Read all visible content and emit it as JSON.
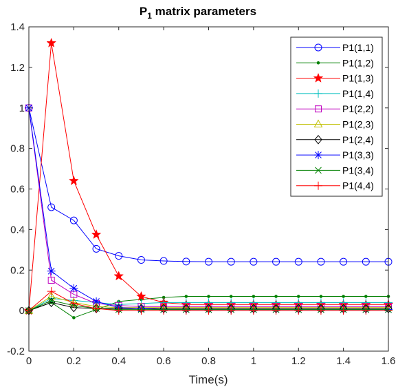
{
  "chart_data": {
    "type": "line",
    "title": {
      "main": "P",
      "subscript": "1",
      "rest": " matrix parameters"
    },
    "xlabel": "Time(s)",
    "ylabel": "",
    "xlim": [
      0,
      1.6
    ],
    "ylim": [
      -0.2,
      1.4
    ],
    "xticks": [
      "0",
      "0.2",
      "0.4",
      "0.6",
      "0.8",
      "1",
      "1.2",
      "1.4",
      "1.6"
    ],
    "yticks": [
      "-0.2",
      "0",
      "0.2",
      "0.4",
      "0.6",
      "0.8",
      "1",
      "1.2",
      "1.4"
    ],
    "grid": false,
    "legend_position": "top-right",
    "x": [
      0,
      0.1,
      0.2,
      0.3,
      0.4,
      0.5,
      0.6,
      0.7,
      0.8,
      0.9,
      1.0,
      1.1,
      1.2,
      1.3,
      1.4,
      1.5,
      1.6
    ],
    "series": [
      {
        "name": "P1(1,1)",
        "color": "#0000ff",
        "marker": "circle",
        "values": [
          1.0,
          0.51,
          0.445,
          0.305,
          0.27,
          0.25,
          0.245,
          0.242,
          0.241,
          0.241,
          0.241,
          0.241,
          0.241,
          0.241,
          0.241,
          0.241,
          0.241
        ]
      },
      {
        "name": "P1(1,2)",
        "color": "#008000",
        "marker": "dot",
        "values": [
          0.0,
          0.04,
          -0.035,
          0.005,
          0.045,
          0.055,
          0.065,
          0.07,
          0.07,
          0.07,
          0.07,
          0.07,
          0.07,
          0.07,
          0.07,
          0.07,
          0.07
        ]
      },
      {
        "name": "P1(1,3)",
        "color": "#ff0000",
        "marker": "star",
        "values": [
          0.0,
          1.32,
          0.64,
          0.375,
          0.17,
          0.07,
          0.04,
          0.03,
          0.03,
          0.03,
          0.03,
          0.03,
          0.03,
          0.03,
          0.03,
          0.03,
          0.03
        ]
      },
      {
        "name": "P1(1,4)",
        "color": "#00bfbf",
        "marker": "plus",
        "values": [
          0.0,
          0.06,
          0.05,
          0.04,
          0.03,
          0.035,
          0.04,
          0.04,
          0.04,
          0.04,
          0.04,
          0.04,
          0.04,
          0.04,
          0.04,
          0.04,
          0.04
        ]
      },
      {
        "name": "P1(2,2)",
        "color": "#bf00bf",
        "marker": "square",
        "values": [
          1.0,
          0.15,
          0.08,
          0.035,
          0.025,
          0.02,
          0.02,
          0.02,
          0.02,
          0.02,
          0.02,
          0.02,
          0.02,
          0.02,
          0.02,
          0.02,
          0.02
        ]
      },
      {
        "name": "P1(2,3)",
        "color": "#bfbf00",
        "marker": "triangle",
        "values": [
          0.0,
          0.07,
          0.04,
          0.02,
          0.015,
          0.015,
          0.015,
          0.015,
          0.015,
          0.015,
          0.015,
          0.015,
          0.015,
          0.015,
          0.015,
          0.015,
          0.015
        ]
      },
      {
        "name": "P1(2,4)",
        "color": "#000000",
        "marker": "diamond",
        "values": [
          0.0,
          0.04,
          0.015,
          0.01,
          0.01,
          0.01,
          0.01,
          0.01,
          0.01,
          0.01,
          0.01,
          0.01,
          0.01,
          0.01,
          0.01,
          0.01,
          0.01
        ]
      },
      {
        "name": "P1(3,3)",
        "color": "#0000ff",
        "marker": "asterisk",
        "values": [
          1.0,
          0.195,
          0.11,
          0.045,
          0.015,
          0.01,
          0.005,
          0.005,
          0.005,
          0.005,
          0.005,
          0.005,
          0.005,
          0.005,
          0.005,
          0.005,
          0.005
        ]
      },
      {
        "name": "P1(3,4)",
        "color": "#008000",
        "marker": "x",
        "values": [
          0.0,
          0.05,
          0.025,
          0.01,
          0.005,
          0.005,
          0.005,
          0.005,
          0.005,
          0.005,
          0.005,
          0.005,
          0.005,
          0.005,
          0.005,
          0.005,
          0.005
        ]
      },
      {
        "name": "P1(4,4)",
        "color": "#ff0000",
        "marker": "plus",
        "values": [
          0.0,
          0.095,
          0.035,
          0.01,
          0.0,
          0.0,
          0.0,
          0.0,
          0.0,
          0.0,
          0.0,
          0.0,
          0.0,
          0.0,
          0.0,
          0.0,
          0.0
        ]
      }
    ]
  }
}
